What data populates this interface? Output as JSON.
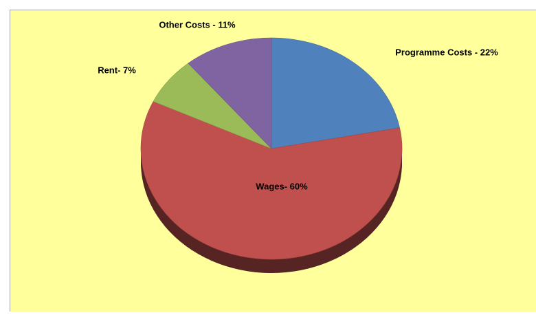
{
  "chart_data": {
    "type": "pie",
    "values": [
      22,
      60,
      7,
      11
    ],
    "value_labels": [
      "Programme Costs - 22%",
      "Wages- 60%",
      "Rent- 7%",
      "Other Costs - 11%"
    ],
    "colors": [
      "#4f81bd",
      "#c0504d",
      "#9bbb59",
      "#8064a2"
    ]
  }
}
